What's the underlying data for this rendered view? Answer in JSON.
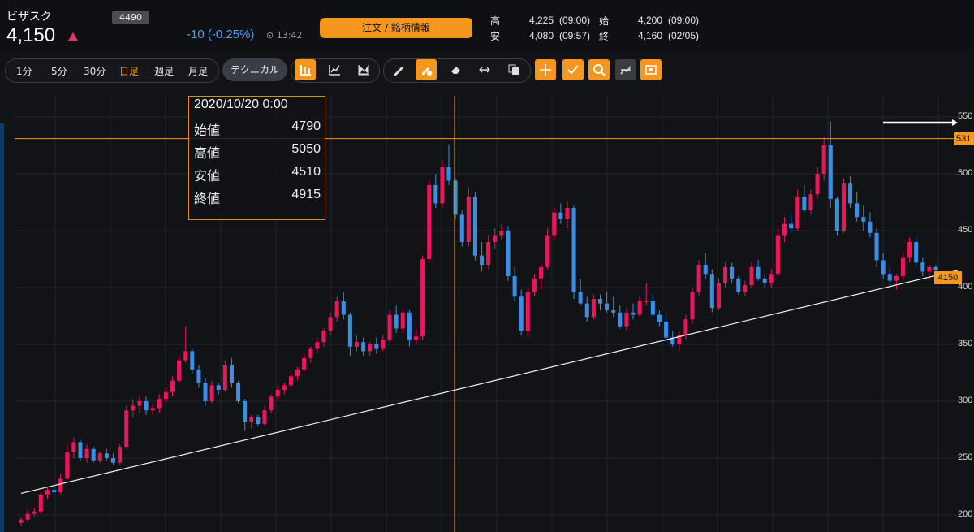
{
  "header": {
    "stock_name": "ビザスク",
    "code": "4490",
    "price": "4,150",
    "change": "-10 (-0.25%)",
    "time": "13:42",
    "order_button": "注文 / 銘柄情報",
    "quotes": {
      "high_label": "高",
      "high": "4,225",
      "high_time": "(09:00)",
      "open_label": "始",
      "open": "4,200",
      "open_time": "(09:00)",
      "low_label": "安",
      "low": "4,080",
      "low_time": "(09:57)",
      "close_label": "終",
      "close": "4,160",
      "close_time": "(02/05)"
    }
  },
  "toolbar": {
    "timeframes": [
      "1分",
      "5分",
      "30分",
      "日足",
      "週足",
      "月足"
    ],
    "active_timeframe": "日足",
    "technical_label": "テクニカル"
  },
  "chart": {
    "y_ticks": [
      "550",
      "500",
      "450",
      "400",
      "350",
      "300",
      "250",
      "200"
    ],
    "hline_label": "531",
    "price_label": "4150"
  },
  "info_box": {
    "datetime": "2020/10/20 0:00",
    "rows": [
      {
        "label": "始値",
        "value": "4790"
      },
      {
        "label": "高値",
        "value": "5050"
      },
      {
        "label": "安値",
        "value": "4510"
      },
      {
        "label": "終値",
        "value": "4915"
      }
    ]
  },
  "colors": {
    "up": "#e8185a",
    "down": "#3a8ee8",
    "accent": "#f5961f",
    "background": "#121317"
  },
  "chart_data": {
    "type": "candlestick",
    "y_ticks": [
      550,
      500,
      450,
      400,
      350,
      300,
      250,
      200
    ],
    "candles": [
      [
        193,
        198,
        190,
        196
      ],
      [
        196,
        205,
        194,
        201
      ],
      [
        201,
        206,
        199,
        203
      ],
      [
        203,
        220,
        201,
        218
      ],
      [
        218,
        225,
        214,
        222
      ],
      [
        222,
        226,
        218,
        220
      ],
      [
        220,
        236,
        218,
        232
      ],
      [
        232,
        262,
        230,
        255
      ],
      [
        255,
        268,
        250,
        264
      ],
      [
        264,
        266,
        248,
        250
      ],
      [
        250,
        262,
        246,
        258
      ],
      [
        258,
        260,
        246,
        248
      ],
      [
        248,
        256,
        246,
        254
      ],
      [
        254,
        258,
        248,
        250
      ],
      [
        250,
        254,
        244,
        246
      ],
      [
        246,
        262,
        244,
        260
      ],
      [
        260,
        296,
        258,
        292
      ],
      [
        292,
        302,
        286,
        296
      ],
      [
        296,
        304,
        290,
        300
      ],
      [
        300,
        304,
        288,
        292
      ],
      [
        292,
        298,
        288,
        294
      ],
      [
        294,
        306,
        290,
        302
      ],
      [
        302,
        312,
        298,
        308
      ],
      [
        308,
        322,
        304,
        318
      ],
      [
        318,
        340,
        316,
        336
      ],
      [
        336,
        366,
        334,
        344
      ],
      [
        344,
        346,
        324,
        328
      ],
      [
        328,
        332,
        312,
        316
      ],
      [
        316,
        320,
        296,
        300
      ],
      [
        300,
        318,
        298,
        314
      ],
      [
        314,
        316,
        306,
        310
      ],
      [
        310,
        336,
        308,
        332
      ],
      [
        332,
        338,
        312,
        316
      ],
      [
        316,
        318,
        298,
        300
      ],
      [
        300,
        302,
        274,
        282
      ],
      [
        282,
        288,
        276,
        286
      ],
      [
        286,
        288,
        278,
        280
      ],
      [
        280,
        296,
        278,
        292
      ],
      [
        292,
        306,
        290,
        304
      ],
      [
        304,
        314,
        300,
        310
      ],
      [
        310,
        316,
        306,
        314
      ],
      [
        314,
        324,
        312,
        322
      ],
      [
        322,
        330,
        318,
        328
      ],
      [
        328,
        342,
        326,
        338
      ],
      [
        338,
        348,
        334,
        346
      ],
      [
        346,
        356,
        342,
        352
      ],
      [
        352,
        364,
        348,
        362
      ],
      [
        362,
        378,
        358,
        374
      ],
      [
        374,
        392,
        370,
        388
      ],
      [
        388,
        396,
        372,
        376
      ],
      [
        376,
        378,
        340,
        348
      ],
      [
        348,
        358,
        344,
        352
      ],
      [
        352,
        356,
        340,
        344
      ],
      [
        344,
        352,
        340,
        350
      ],
      [
        350,
        356,
        342,
        346
      ],
      [
        346,
        358,
        344,
        354
      ],
      [
        354,
        380,
        352,
        376
      ],
      [
        376,
        384,
        360,
        364
      ],
      [
        364,
        380,
        360,
        378
      ],
      [
        378,
        380,
        348,
        354
      ],
      [
        354,
        364,
        350,
        357
      ],
      [
        357,
        428,
        354,
        425
      ],
      [
        425,
        495,
        422,
        490
      ],
      [
        490,
        500,
        470,
        474
      ],
      [
        474,
        512,
        470,
        506
      ],
      [
        506,
        526,
        490,
        494
      ],
      [
        494,
        496,
        460,
        464
      ],
      [
        464,
        468,
        436,
        440
      ],
      [
        440,
        488,
        436,
        480
      ],
      [
        480,
        484,
        424,
        428
      ],
      [
        428,
        440,
        414,
        420
      ],
      [
        420,
        446,
        416,
        440
      ],
      [
        440,
        452,
        434,
        446
      ],
      [
        446,
        456,
        442,
        450
      ],
      [
        450,
        454,
        406,
        410
      ],
      [
        410,
        418,
        388,
        392
      ],
      [
        392,
        398,
        358,
        362
      ],
      [
        362,
        400,
        356,
        396
      ],
      [
        396,
        412,
        392,
        408
      ],
      [
        408,
        422,
        398,
        418
      ],
      [
        418,
        452,
        416,
        446
      ],
      [
        446,
        470,
        442,
        466
      ],
      [
        466,
        474,
        456,
        460
      ],
      [
        460,
        476,
        452,
        470
      ],
      [
        470,
        472,
        390,
        396
      ],
      [
        396,
        408,
        384,
        386
      ],
      [
        386,
        392,
        370,
        374
      ],
      [
        374,
        394,
        372,
        390
      ],
      [
        390,
        394,
        380,
        386
      ],
      [
        386,
        396,
        378,
        380
      ],
      [
        380,
        392,
        374,
        378
      ],
      [
        378,
        384,
        364,
        366
      ],
      [
        366,
        382,
        362,
        378
      ],
      [
        378,
        386,
        372,
        376
      ],
      [
        376,
        392,
        374,
        388
      ],
      [
        388,
        404,
        384,
        388
      ],
      [
        388,
        394,
        374,
        376
      ],
      [
        376,
        380,
        366,
        370
      ],
      [
        370,
        376,
        352,
        356
      ],
      [
        356,
        362,
        348,
        350
      ],
      [
        350,
        362,
        344,
        358
      ],
      [
        358,
        376,
        354,
        372
      ],
      [
        372,
        400,
        368,
        396
      ],
      [
        396,
        424,
        392,
        420
      ],
      [
        420,
        430,
        408,
        412
      ],
      [
        412,
        416,
        378,
        382
      ],
      [
        382,
        408,
        380,
        404
      ],
      [
        404,
        422,
        400,
        418
      ],
      [
        418,
        422,
        404,
        408
      ],
      [
        408,
        410,
        394,
        396
      ],
      [
        396,
        406,
        392,
        402
      ],
      [
        402,
        422,
        400,
        418
      ],
      [
        418,
        424,
        406,
        408
      ],
      [
        408,
        412,
        400,
        404
      ],
      [
        404,
        416,
        400,
        412
      ],
      [
        412,
        452,
        410,
        446
      ],
      [
        446,
        462,
        440,
        456
      ],
      [
        456,
        464,
        448,
        452
      ],
      [
        452,
        486,
        450,
        480
      ],
      [
        480,
        490,
        466,
        468
      ],
      [
        468,
        486,
        464,
        482
      ],
      [
        482,
        506,
        478,
        500
      ],
      [
        500,
        532,
        494,
        525
      ],
      [
        525,
        546,
        470,
        478
      ],
      [
        478,
        480,
        446,
        450
      ],
      [
        450,
        496,
        448,
        492
      ],
      [
        492,
        498,
        470,
        474
      ],
      [
        474,
        484,
        458,
        462
      ],
      [
        462,
        472,
        450,
        458
      ],
      [
        458,
        466,
        444,
        448
      ],
      [
        448,
        452,
        418,
        424
      ],
      [
        424,
        430,
        408,
        412
      ],
      [
        412,
        418,
        402,
        406
      ],
      [
        406,
        412,
        398,
        410
      ],
      [
        410,
        430,
        406,
        426
      ],
      [
        426,
        444,
        422,
        440
      ],
      [
        440,
        446,
        418,
        422
      ],
      [
        422,
        426,
        410,
        414
      ],
      [
        414,
        420,
        406,
        418
      ],
      [
        418,
        420,
        406,
        415
      ]
    ],
    "hline": 531,
    "vline_date": "2020/10/20",
    "trendline": [
      [
        0,
        219
      ],
      [
        143,
        414
      ]
    ]
  }
}
